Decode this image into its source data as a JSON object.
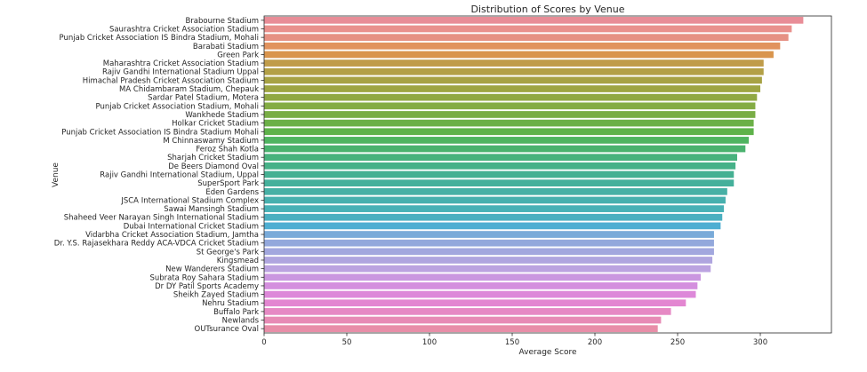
{
  "chart_data": {
    "type": "bar",
    "orientation": "horizontal",
    "title": "Distribution of Scores by Venue",
    "xlabel": "Average Score",
    "ylabel": "Venue",
    "xlim": [
      0,
      343
    ],
    "xticks": [
      0,
      50,
      100,
      150,
      200,
      250,
      300
    ],
    "grid": false,
    "categories": [
      "Brabourne Stadium",
      "Saurashtra Cricket Association Stadium",
      "Punjab Cricket Association IS Bindra Stadium, Mohali",
      "Barabati Stadium",
      "Green Park",
      "Maharashtra Cricket Association Stadium",
      "Rajiv Gandhi International Stadium Uppal",
      "Himachal Pradesh Cricket Association Stadium",
      "MA Chidambaram Stadium, Chepauk",
      "Sardar Patel Stadium, Motera",
      "Punjab Cricket Association Stadium, Mohali",
      "Wankhede Stadium",
      "Holkar Cricket Stadium",
      "Punjab Cricket Association IS Bindra Stadium Mohali",
      "M Chinnaswamy Stadium",
      "Feroz Shah Kotla",
      "Sharjah Cricket Stadium",
      "De Beers Diamond Oval",
      "Rajiv Gandhi International Stadium, Uppal",
      "SuperSport Park",
      "Eden Gardens",
      "JSCA International Stadium Complex",
      "Sawai Mansingh Stadium",
      "Shaheed Veer Narayan Singh International Stadium",
      "Dubai International Cricket Stadium",
      "Vidarbha Cricket Association Stadium, Jamtha",
      "Dr. Y.S. Rajasekhara Reddy ACA-VDCA Cricket Stadium",
      "St George's Park",
      "Kingsmead",
      "New Wanderers Stadium",
      "Subrata Roy Sahara Stadium",
      "Dr DY Patil Sports Academy",
      "Sheikh Zayed Stadium",
      "Nehru Stadium",
      "Buffalo Park",
      "Newlands",
      "OUTsurance Oval"
    ],
    "values": [
      326,
      319,
      317,
      312,
      308,
      302,
      302,
      301,
      300,
      298,
      297,
      297,
      296,
      296,
      293,
      291,
      286,
      285,
      284,
      284,
      280,
      279,
      278,
      277,
      276,
      272,
      272,
      272,
      271,
      270,
      264,
      262,
      261,
      255,
      246,
      240,
      238
    ],
    "colors": [
      "#e88d97",
      "#e9918d",
      "#e69183",
      "#e1935e",
      "#d9954d",
      "#c09c4a",
      "#b3a046",
      "#a7a244",
      "#9ea542",
      "#90a843",
      "#84ac44",
      "#79ad45",
      "#6bb047",
      "#5eb24a",
      "#4fb460",
      "#4ab26e",
      "#48b27d",
      "#46b188",
      "#45b092",
      "#44b09b",
      "#46b0a5",
      "#47b0ae",
      "#48b1b6",
      "#4aafc0",
      "#4eaed2",
      "#79aad9",
      "#93a8dc",
      "#a2a7de",
      "#afa5df",
      "#bba3e0",
      "#ca97e0",
      "#d48fde",
      "#dd88d9",
      "#e386d1",
      "#e689c4",
      "#e78bb5",
      "#e88ea8"
    ]
  }
}
